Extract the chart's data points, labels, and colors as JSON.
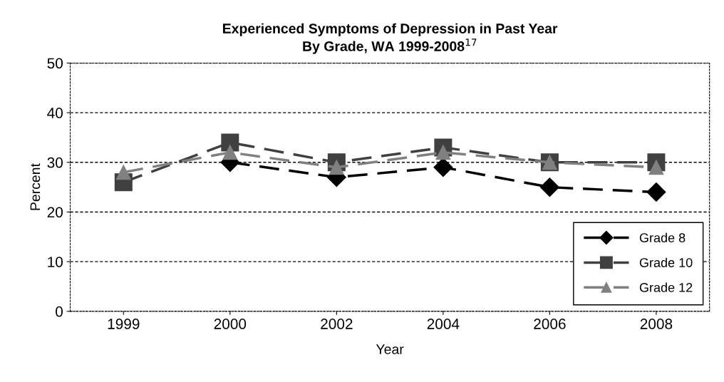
{
  "chart_data": {
    "type": "line",
    "title": "Experienced Symptoms of Depression in Past Year\nBy Grade, WA 1999-2008$^{17}$",
    "xlabel": "Year",
    "ylabel": "Percent",
    "categories": [
      "1999",
      "2000",
      "2002",
      "2004",
      "2006",
      "2008"
    ],
    "series": [
      {
        "name": "Grade 8",
        "color": "#000000",
        "marker": "diamond",
        "values": [
          null,
          30,
          27,
          29,
          25,
          24
        ]
      },
      {
        "name": "Grade 10",
        "color": "#404040",
        "marker": "square",
        "values": [
          26,
          34,
          30,
          33,
          30,
          30
        ]
      },
      {
        "name": "Grade 12",
        "color": "#808080",
        "marker": "triangle",
        "values": [
          28,
          32,
          29,
          32,
          30,
          29
        ]
      }
    ],
    "ylim": [
      0,
      50
    ],
    "yticks": [
      0,
      10,
      20,
      30,
      40,
      50
    ],
    "grid": "y",
    "legend": "bottom right",
    "line_style": "dashed"
  }
}
